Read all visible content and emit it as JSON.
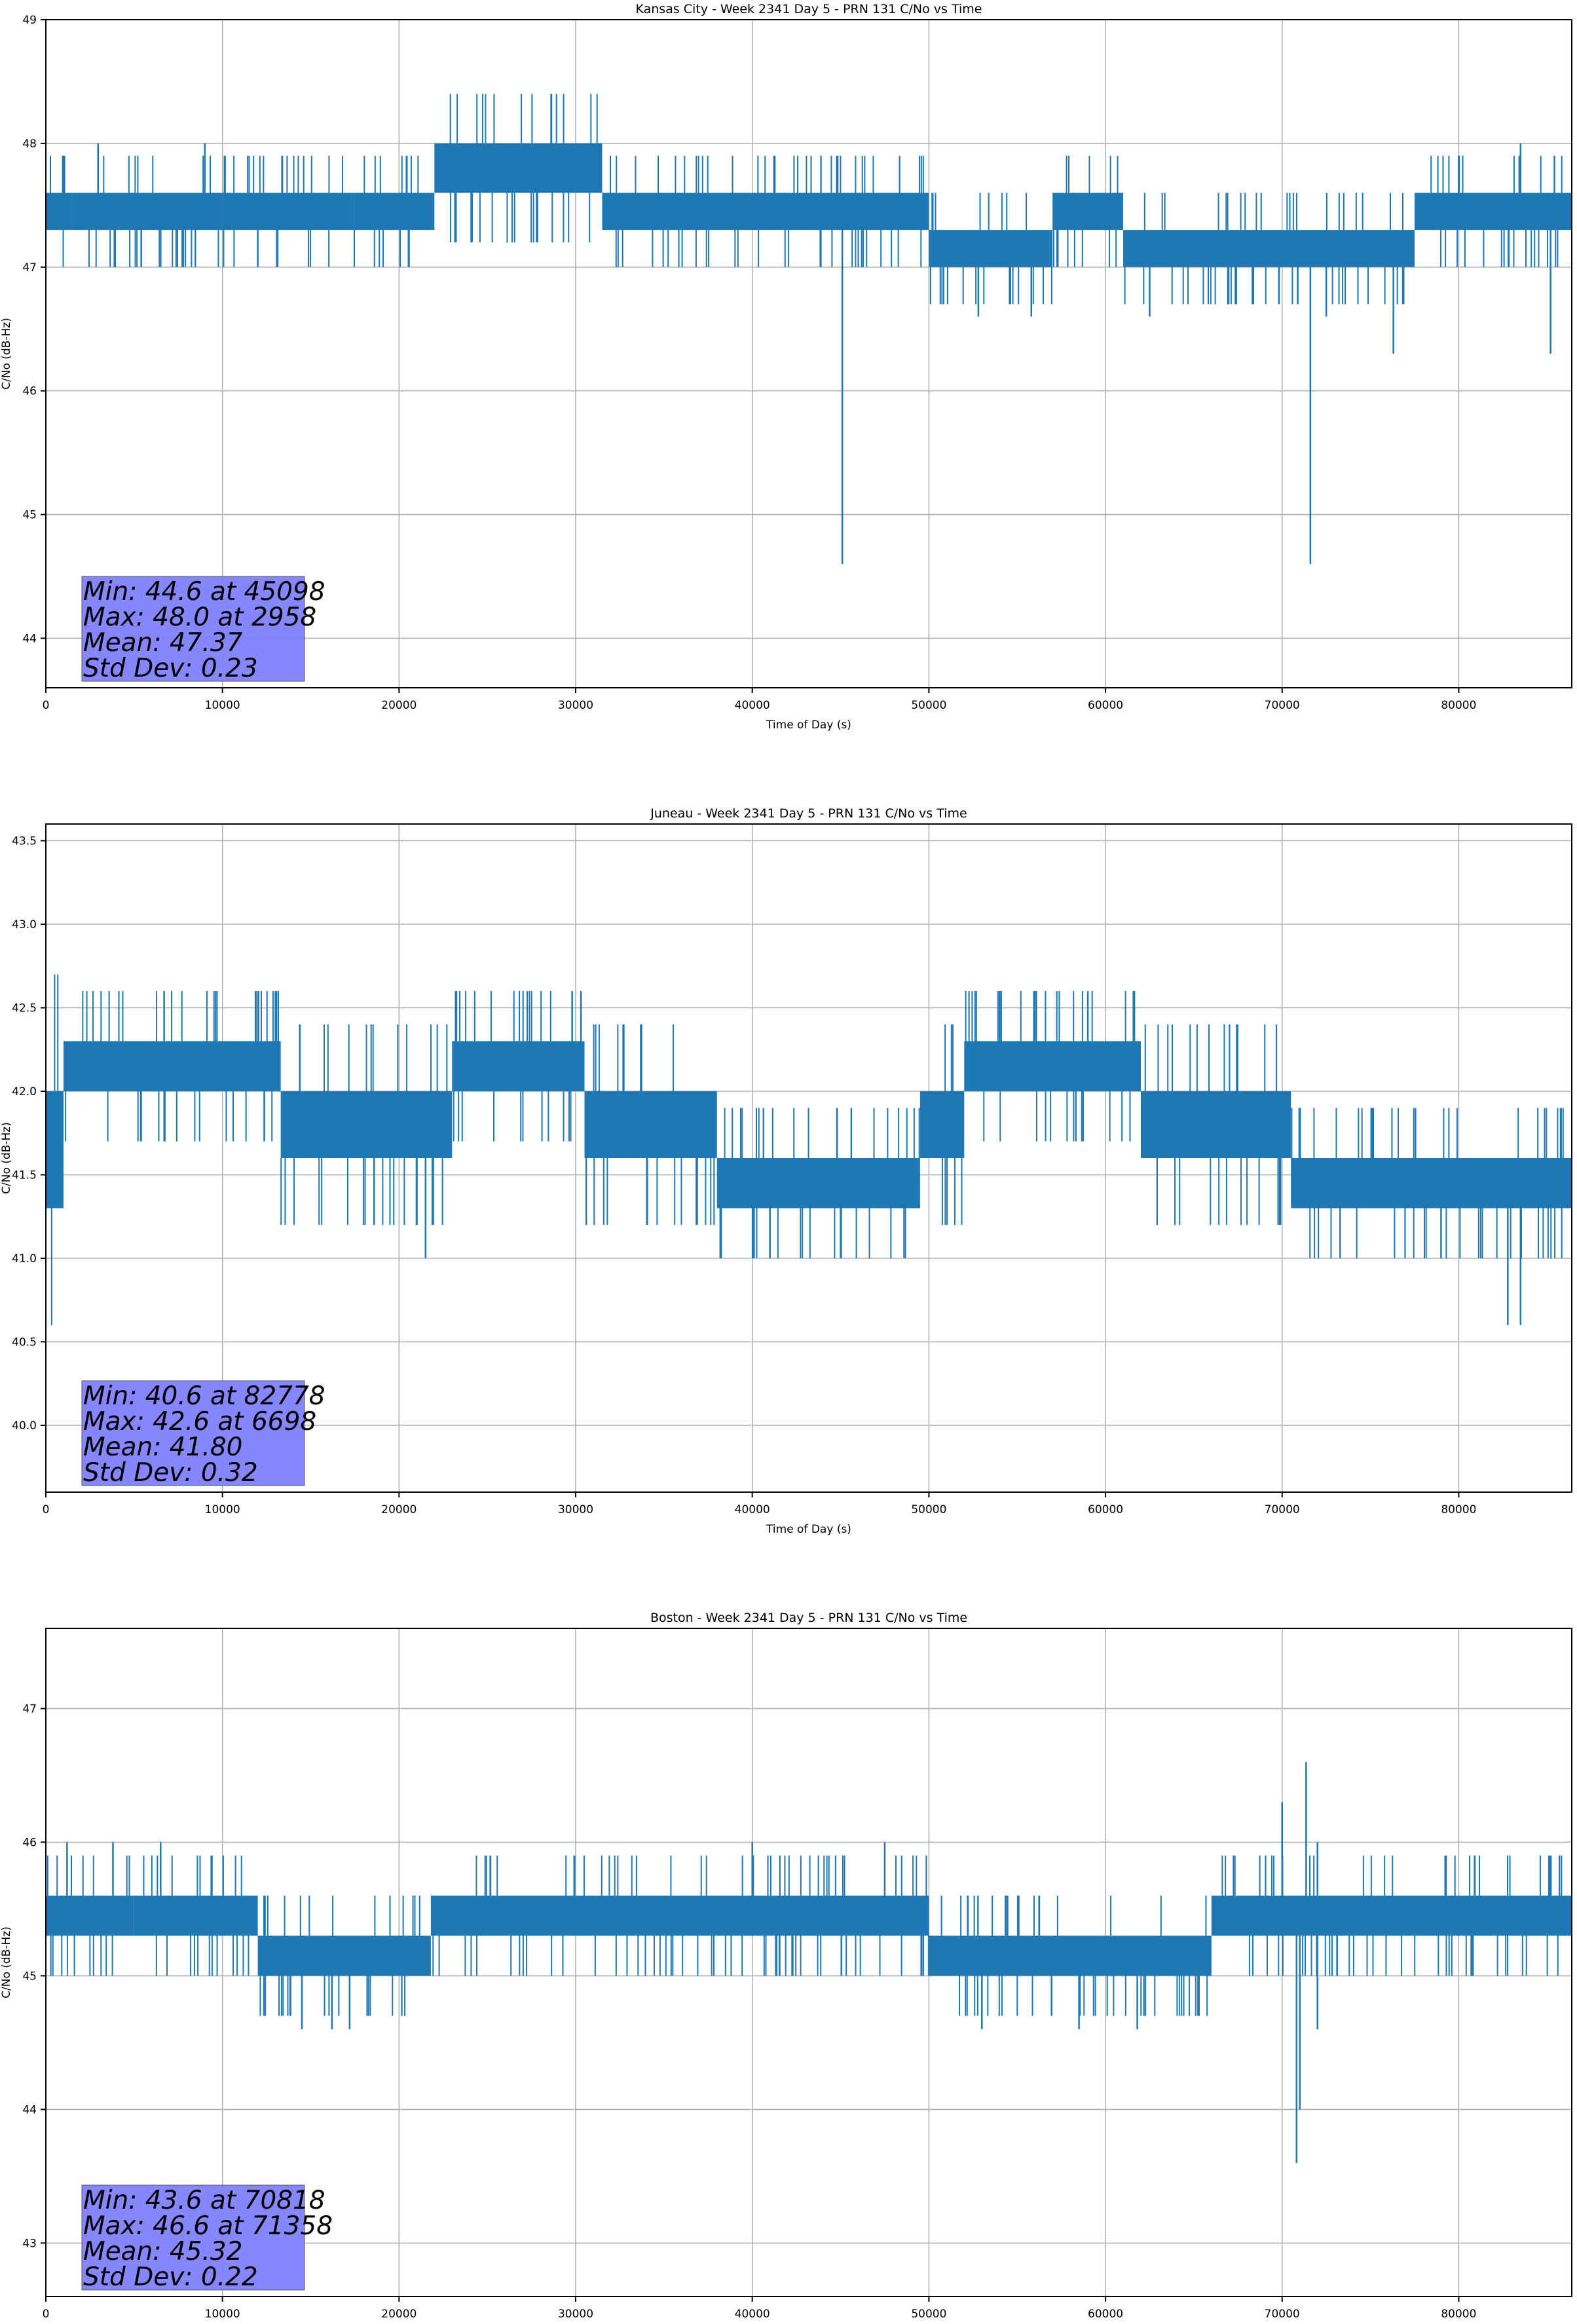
{
  "chart_data": [
    {
      "type": "line",
      "title": "Kansas City - Week 2341 Day 5 - PRN 131 C/No vs Time",
      "xlabel": "Time of Day (s)",
      "ylabel": "C/No (dB-Hz)",
      "xlim": [
        0,
        86400
      ],
      "ylim": [
        43.6,
        49.0
      ],
      "xticks": [
        0,
        10000,
        20000,
        30000,
        40000,
        50000,
        60000,
        70000,
        80000
      ],
      "yticks": [
        44,
        45,
        46,
        47,
        48,
        49
      ],
      "ytick_labels": [
        "44",
        "45",
        "46",
        "47",
        "48",
        "49"
      ],
      "grid": true,
      "line_color": "#1f77b4",
      "stats_box_color": "#8080ff",
      "stats": {
        "min": "Min: 44.6 at 45098",
        "max": "Max: 48.0 at 2958",
        "mean": "Mean: 47.37",
        "std": "Std Dev: 0.23"
      },
      "series": [
        {
          "name": "C/No",
          "segments": [
            {
              "x0": 0,
              "x1": 1500,
              "low": 47.3,
              "high": 47.6
            },
            {
              "x0": 1500,
              "x1": 10000,
              "low": 47.3,
              "high": 47.6
            },
            {
              "x0": 10000,
              "x1": 17500,
              "low": 47.3,
              "high": 47.6
            },
            {
              "x0": 17500,
              "x1": 22000,
              "low": 47.3,
              "high": 47.6
            },
            {
              "x0": 22000,
              "x1": 31500,
              "low": 47.6,
              "high": 48.0
            },
            {
              "x0": 31500,
              "x1": 50000,
              "low": 47.3,
              "high": 47.6
            },
            {
              "x0": 50000,
              "x1": 57000,
              "low": 47.0,
              "high": 47.3
            },
            {
              "x0": 57000,
              "x1": 61000,
              "low": 47.3,
              "high": 47.6
            },
            {
              "x0": 61000,
              "x1": 77500,
              "low": 47.0,
              "high": 47.3
            },
            {
              "x0": 77500,
              "x1": 86400,
              "low": 47.3,
              "high": 47.6
            }
          ],
          "spikes": [
            {
              "x": 2958,
              "low": 47.6,
              "high": 48.0
            },
            {
              "x": 5400,
              "low": 47.0,
              "high": 47.3
            },
            {
              "x": 9000,
              "low": 47.6,
              "high": 48.0
            },
            {
              "x": 12000,
              "low": 47.0,
              "high": 47.3
            },
            {
              "x": 45098,
              "low": 44.6,
              "high": 47.3
            },
            {
              "x": 52800,
              "low": 46.6,
              "high": 47.0
            },
            {
              "x": 55800,
              "low": 46.6,
              "high": 47.0
            },
            {
              "x": 62500,
              "low": 46.6,
              "high": 47.0
            },
            {
              "x": 71600,
              "low": 44.6,
              "high": 47.0
            },
            {
              "x": 72500,
              "low": 46.6,
              "high": 47.0
            },
            {
              "x": 76300,
              "low": 46.3,
              "high": 47.0
            },
            {
              "x": 83500,
              "low": 47.6,
              "high": 48.0
            },
            {
              "x": 85200,
              "low": 46.3,
              "high": 47.3
            }
          ]
        }
      ]
    },
    {
      "type": "line",
      "title": "Juneau - Week 2341 Day 5 - PRN 131 C/No vs Time",
      "xlabel": "Time of Day (s)",
      "ylabel": "C/No (dB-Hz)",
      "xlim": [
        0,
        86400
      ],
      "ylim": [
        39.6,
        43.6
      ],
      "xticks": [
        0,
        10000,
        20000,
        30000,
        40000,
        50000,
        60000,
        70000,
        80000
      ],
      "yticks": [
        40.0,
        40.5,
        41.0,
        41.5,
        42.0,
        42.5,
        43.0,
        43.5
      ],
      "ytick_labels": [
        "40.0",
        "40.5",
        "41.0",
        "41.5",
        "42.0",
        "42.5",
        "43.0",
        "43.5"
      ],
      "grid": true,
      "line_color": "#1f77b4",
      "stats_box_color": "#8080ff",
      "stats": {
        "min": "Min: 40.6 at 82778",
        "max": "Max: 42.6 at 6698",
        "mean": "Mean: 41.80",
        "std": "Std Dev: 0.32"
      },
      "series": [
        {
          "name": "C/No",
          "segments": [
            {
              "x0": 0,
              "x1": 1000,
              "low": 41.3,
              "high": 42.0
            },
            {
              "x0": 1000,
              "x1": 13300,
              "low": 42.0,
              "high": 42.3
            },
            {
              "x0": 13300,
              "x1": 23000,
              "low": 41.6,
              "high": 42.0
            },
            {
              "x0": 23000,
              "x1": 30500,
              "low": 42.0,
              "high": 42.3
            },
            {
              "x0": 30500,
              "x1": 38000,
              "low": 41.6,
              "high": 42.0
            },
            {
              "x0": 38000,
              "x1": 49500,
              "low": 41.3,
              "high": 41.6
            },
            {
              "x0": 49500,
              "x1": 52000,
              "low": 41.6,
              "high": 42.0
            },
            {
              "x0": 52000,
              "x1": 62000,
              "low": 42.0,
              "high": 42.3
            },
            {
              "x0": 62000,
              "x1": 70500,
              "low": 41.6,
              "high": 42.0
            },
            {
              "x0": 70500,
              "x1": 86400,
              "low": 41.3,
              "high": 41.6
            }
          ],
          "spikes": [
            {
              "x": 6698,
              "low": 42.3,
              "high": 42.6
            },
            {
              "x": 13000,
              "low": 42.3,
              "high": 42.6
            },
            {
              "x": 21500,
              "low": 41.0,
              "high": 41.6
            },
            {
              "x": 29800,
              "low": 42.3,
              "high": 42.6
            },
            {
              "x": 30300,
              "low": 42.3,
              "high": 42.6
            },
            {
              "x": 41000,
              "low": 41.0,
              "high": 41.3
            },
            {
              "x": 45000,
              "low": 41.0,
              "high": 41.3
            },
            {
              "x": 54000,
              "low": 42.3,
              "high": 42.6
            },
            {
              "x": 56000,
              "low": 42.3,
              "high": 42.6
            },
            {
              "x": 59000,
              "low": 42.3,
              "high": 42.6
            },
            {
              "x": 79000,
              "low": 41.0,
              "high": 41.3
            },
            {
              "x": 82778,
              "low": 40.6,
              "high": 41.3
            },
            {
              "x": 83500,
              "low": 40.6,
              "high": 41.3
            }
          ]
        }
      ]
    },
    {
      "type": "line",
      "title": "Boston - Week 2341 Day 5 - PRN 131 C/No vs Time",
      "xlabel": "Time of Day (s)",
      "ylabel": "C/No (dB-Hz)",
      "xlim": [
        0,
        86400
      ],
      "ylim": [
        42.6,
        47.6
      ],
      "xticks": [
        0,
        10000,
        20000,
        30000,
        40000,
        50000,
        60000,
        70000,
        80000
      ],
      "yticks": [
        43,
        44,
        45,
        46,
        47
      ],
      "ytick_labels": [
        "43",
        "44",
        "45",
        "46",
        "47"
      ],
      "grid": true,
      "line_color": "#1f77b4",
      "stats_box_color": "#8080ff",
      "stats": {
        "min": "Min: 43.6 at 70818",
        "max": "Max: 46.6 at 71358",
        "mean": "Mean: 45.32",
        "std": "Std Dev: 0.22"
      },
      "series": [
        {
          "name": "C/No",
          "segments": [
            {
              "x0": 0,
              "x1": 5000,
              "low": 45.3,
              "high": 45.6
            },
            {
              "x0": 5000,
              "x1": 12000,
              "low": 45.3,
              "high": 45.6
            },
            {
              "x0": 12000,
              "x1": 21800,
              "low": 45.0,
              "high": 45.3
            },
            {
              "x0": 21800,
              "x1": 50000,
              "low": 45.3,
              "high": 45.6
            },
            {
              "x0": 50000,
              "x1": 66000,
              "low": 45.0,
              "high": 45.3
            },
            {
              "x0": 66000,
              "x1": 86400,
              "low": 45.3,
              "high": 45.6
            }
          ],
          "spikes": [
            {
              "x": 1200,
              "low": 45.6,
              "high": 46.0
            },
            {
              "x": 3800,
              "low": 45.6,
              "high": 46.0
            },
            {
              "x": 6500,
              "low": 45.6,
              "high": 46.0
            },
            {
              "x": 14500,
              "low": 44.6,
              "high": 45.0
            },
            {
              "x": 16200,
              "low": 44.6,
              "high": 45.0
            },
            {
              "x": 17200,
              "low": 44.6,
              "high": 45.0
            },
            {
              "x": 40000,
              "low": 45.6,
              "high": 46.0
            },
            {
              "x": 47500,
              "low": 45.6,
              "high": 46.0
            },
            {
              "x": 53000,
              "low": 44.6,
              "high": 45.0
            },
            {
              "x": 58500,
              "low": 44.6,
              "high": 45.0
            },
            {
              "x": 61800,
              "low": 44.6,
              "high": 45.0
            },
            {
              "x": 70000,
              "low": 45.6,
              "high": 46.3
            },
            {
              "x": 70818,
              "low": 43.6,
              "high": 45.3
            },
            {
              "x": 71000,
              "low": 44.0,
              "high": 45.3
            },
            {
              "x": 71358,
              "low": 45.6,
              "high": 46.6
            },
            {
              "x": 72000,
              "low": 44.6,
              "high": 46.0
            }
          ]
        }
      ]
    }
  ]
}
